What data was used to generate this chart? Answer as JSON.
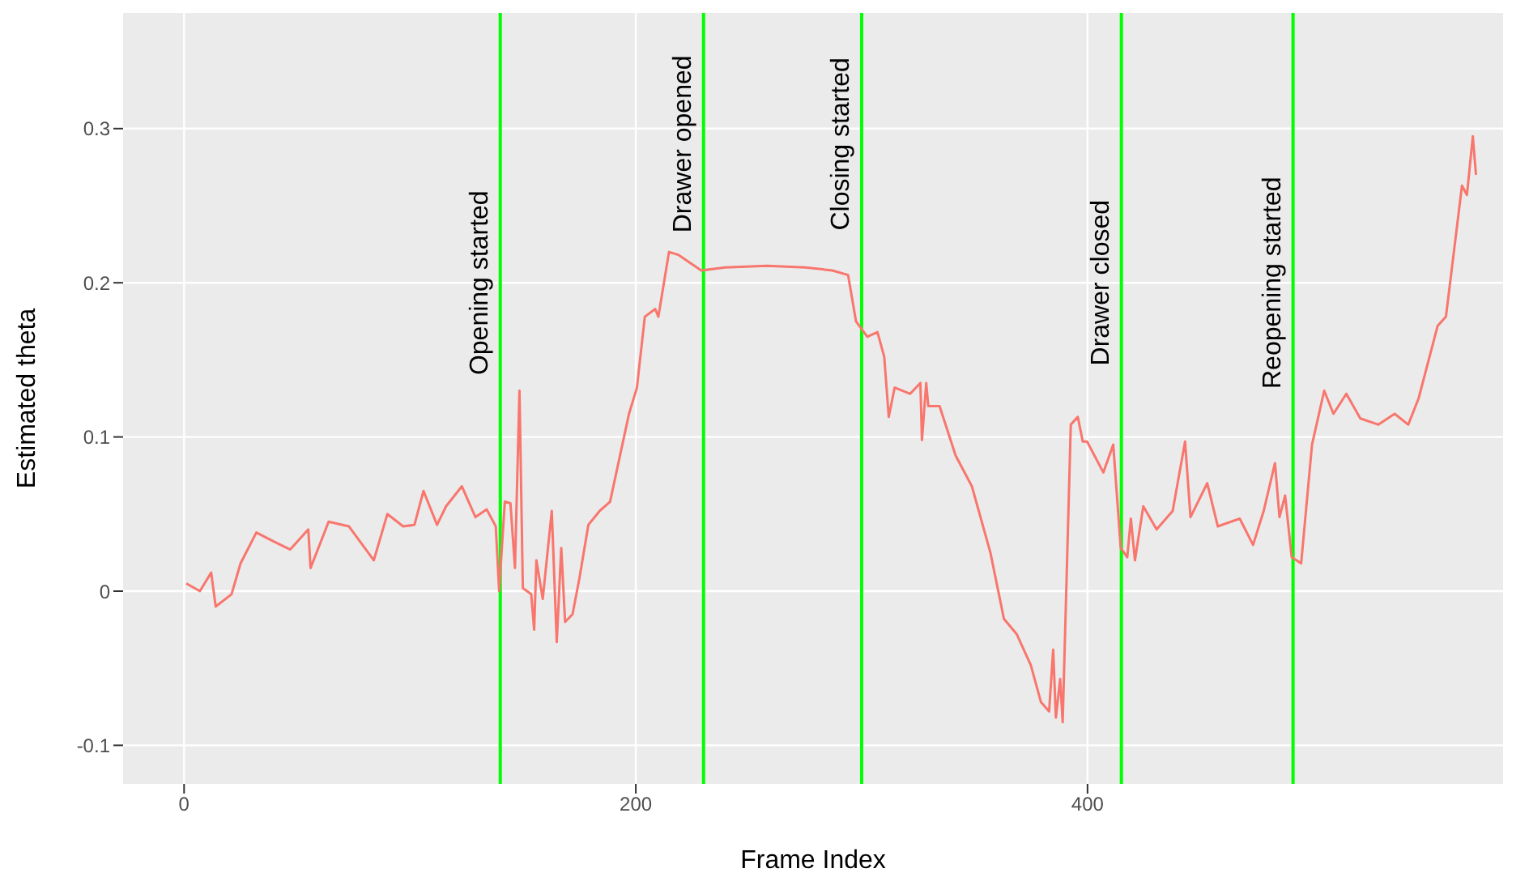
{
  "chart_data": {
    "type": "line",
    "xlabel": "Frame Index",
    "ylabel": "Estimated theta",
    "x": [
      1,
      7,
      12,
      14,
      21,
      25,
      32,
      40,
      47,
      55,
      56,
      64,
      73,
      84,
      90,
      97,
      102,
      106,
      112,
      116,
      123,
      129,
      134,
      138,
      139.5,
      142,
      144.5,
      146.5,
      148.5,
      150,
      153.7,
      155,
      156,
      158.8,
      162.8,
      165,
      167,
      168.7,
      172,
      175,
      179,
      184,
      188.6,
      197,
      200.5,
      204,
      208.6,
      210,
      214.7,
      219,
      229,
      239.6,
      258,
      275,
      287,
      294,
      297.5,
      302.5,
      307,
      310,
      312,
      314.6,
      321.5,
      326,
      326.7,
      328.6,
      329.5,
      334.5,
      341.6,
      348.8,
      357,
      363,
      368.7,
      374.9,
      379.4,
      383,
      384.8,
      386,
      387.9,
      389,
      392.6,
      395.7,
      397.9,
      399.8,
      407,
      411.4,
      414.7,
      417.6,
      419.2,
      421,
      424.7,
      430.6,
      437.7,
      443.2,
      445.6,
      453,
      457.7,
      467.4,
      473.3,
      478,
      483,
      485,
      487.5,
      490.4,
      494.6,
      499.4,
      504.8,
      508.9,
      514.6,
      520.8,
      528.8,
      536,
      542,
      546.6,
      555,
      558.7,
      565.8,
      568,
      570.6,
      572
    ],
    "series": [
      {
        "color": "#f8766d",
        "values": [
          0.005,
          0,
          0.012,
          -0.01,
          -0.002,
          0.018,
          0.038,
          0.032,
          0.027,
          0.04,
          0.015,
          0.045,
          0.042,
          0.02,
          0.05,
          0.042,
          0.043,
          0.065,
          0.043,
          0.055,
          0.068,
          0.048,
          0.053,
          0.042,
          0,
          0.058,
          0.057,
          0.015,
          0.13,
          0.002,
          -0.002,
          -0.025,
          0.02,
          -0.005,
          0.052,
          -0.033,
          0.028,
          -0.02,
          -0.015,
          0.008,
          0.043,
          0.052,
          0.058,
          0.115,
          0.132,
          0.178,
          0.183,
          0.178,
          0.22,
          0.218,
          0.208,
          0.21,
          0.211,
          0.21,
          0.208,
          0.205,
          0.175,
          0.165,
          0.168,
          0.152,
          0.113,
          0.132,
          0.128,
          0.135,
          0.098,
          0.135,
          0.12,
          0.12,
          0.088,
          0.068,
          0.025,
          -0.018,
          -0.028,
          -0.048,
          -0.072,
          -0.078,
          -0.038,
          -0.082,
          -0.057,
          -0.085,
          0.108,
          0.113,
          0.097,
          0.097,
          0.077,
          0.095,
          0.028,
          0.022,
          0.047,
          0.02,
          0.055,
          0.04,
          0.052,
          0.097,
          0.048,
          0.07,
          0.042,
          0.047,
          0.03,
          0.052,
          0.083,
          0.048,
          0.062,
          0.022,
          0.018,
          0.095,
          0.13,
          0.115,
          0.128,
          0.112,
          0.108,
          0.115,
          0.108,
          0.125,
          0.172,
          0.178,
          0.263,
          0.257,
          0.295,
          0.27
        ]
      }
    ],
    "xlim": [
      -27,
      584
    ],
    "xticks": [
      0,
      200,
      400
    ],
    "ylim": [
      -0.125,
      0.375
    ],
    "yticks": [
      -0.1,
      0,
      0.1,
      0.2,
      0.3
    ],
    "grid": true,
    "legend": false,
    "marker": "none",
    "line_style": "solid",
    "ref_lines": [
      {
        "axis": "x",
        "value": 140,
        "color": "#00ff00"
      },
      {
        "axis": "x",
        "value": 230,
        "color": "#00ff00"
      },
      {
        "axis": "x",
        "value": 300,
        "color": "#00ff00"
      },
      {
        "axis": "x",
        "value": 415,
        "color": "#00ff00"
      },
      {
        "axis": "x",
        "value": 491,
        "color": "#00ff00"
      }
    ],
    "annotations": [
      {
        "text": "Opening started",
        "x": 140,
        "y": 0.2
      },
      {
        "text": "Drawer opened",
        "x": 230,
        "y": 0.29
      },
      {
        "text": "Closing started",
        "x": 300,
        "y": 0.29
      },
      {
        "text": "Drawer closed",
        "x": 415,
        "y": 0.2
      },
      {
        "text": "Reopening started",
        "x": 491,
        "y": 0.2
      }
    ]
  }
}
